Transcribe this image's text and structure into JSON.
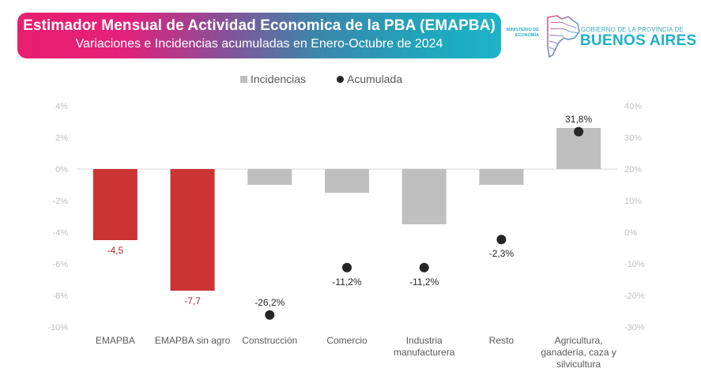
{
  "header": {
    "title": "Estimador Mensual de Actividad Economica de la PBA (EMAPBA)",
    "subtitle": "Variaciones e Incidencias acumuladas en Enero-Octubre de 2024",
    "ministry_line1": "MINISTERIO DE",
    "ministry_line2": "ECONOMÍA",
    "gov_small": "GOBIERNO DE LA PROVINCIA DE",
    "gov_big": "BUENOS AIRES",
    "logo_icon": "buenos-aires-province-map-icon"
  },
  "colors": {
    "banner_gradient_start": "#e81e6e",
    "banner_gradient_end": "#1db3c8",
    "bar_red": "#cc3333",
    "bar_gray": "#bfbfbf",
    "dot": "#262626",
    "label_red": "#a0282f",
    "brand_cyan": "#1eb1c6"
  },
  "chart_data": {
    "type": "bar",
    "title": "Estimador Mensual de Actividad Economica de la PBA (EMAPBA)",
    "subtitle": "Variaciones e Incidencias acumuladas en Enero-Octubre de 2024",
    "categories": [
      [
        "EMAPBA"
      ],
      [
        "EMAPBA sin agro"
      ],
      [
        "Construcción"
      ],
      [
        "Comercio"
      ],
      [
        "Industria",
        "manufacturera"
      ],
      [
        "Resto"
      ],
      [
        "Agricultura,",
        "ganadería, caza y",
        "silvicultura"
      ]
    ],
    "legend": {
      "position": "top-center",
      "entries": [
        "Incidencias",
        "Acumulada"
      ]
    },
    "series": [
      {
        "name": "Incidencias",
        "type": "bar",
        "axis": "left",
        "values": [
          -4.5,
          -7.7,
          -1.0,
          -1.5,
          -3.5,
          -1.0,
          2.6
        ],
        "bar_colors": [
          "#cc3333",
          "#cc3333",
          "#bfbfbf",
          "#bfbfbf",
          "#bfbfbf",
          "#bfbfbf",
          "#bfbfbf"
        ],
        "labels": [
          "-4,5",
          "-7,7",
          null,
          null,
          null,
          null,
          null
        ]
      },
      {
        "name": "Acumulada",
        "type": "scatter",
        "axis": "right",
        "values": [
          null,
          null,
          -26.2,
          -11.2,
          -11.2,
          -2.3,
          31.8
        ],
        "labels": [
          null,
          null,
          "-26,2%",
          "-11,2%",
          "-11,2%",
          "-2,3%",
          "31,8%"
        ],
        "label_position": [
          "",
          "",
          "above",
          "below",
          "below",
          "below",
          "above"
        ]
      }
    ],
    "y_left": {
      "range": [
        -10,
        4
      ],
      "ticks": [
        4,
        2,
        0,
        -2,
        -4,
        -6,
        -8,
        -10
      ],
      "tick_labels": [
        "4%",
        "2%",
        "0%",
        "-2%",
        "-4%",
        "-6%",
        "-8%",
        "-10%"
      ]
    },
    "y_right": {
      "range": [
        -30,
        40
      ],
      "ticks": [
        40,
        30,
        20,
        10,
        0,
        -10,
        -20,
        -30
      ],
      "tick_labels": [
        "40%",
        "30%",
        "20%",
        "10%",
        "0%",
        "-10%",
        "-20%",
        "-30%"
      ]
    },
    "grid": false,
    "zero_line": true,
    "xlabel": "",
    "ylabel": ""
  }
}
